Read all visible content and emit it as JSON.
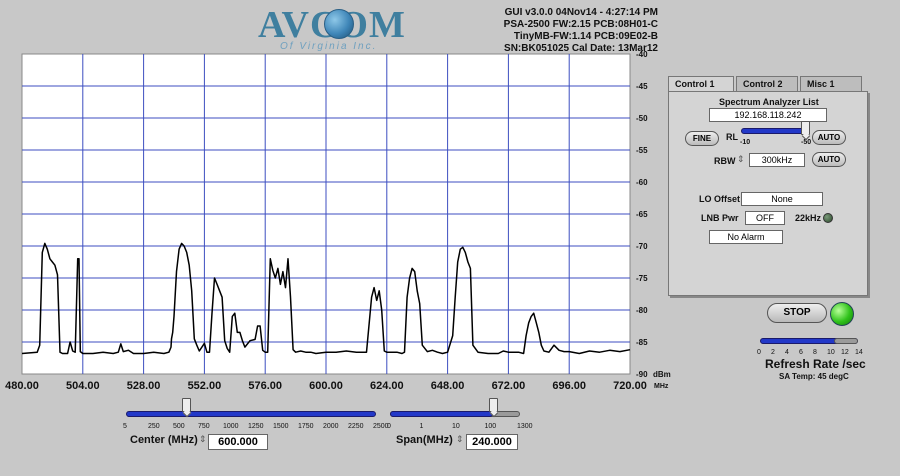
{
  "logo": {
    "name": "AVCOM",
    "sub": "Of Virginia Inc."
  },
  "info_lines": [
    "GUI v3.0.0   04Nov14 - 4:27:14 PM",
    "PSA-2500 FW:2.15 PCB:08H01-C",
    "TinyMB-FW:1.14  PCB:09E02-B",
    "SN:BK051025  Cal Date: 13Mar12"
  ],
  "chart_data": {
    "type": "line",
    "x_ticks": [
      "480.00",
      "504.00",
      "528.00",
      "552.00",
      "576.00",
      "600.00",
      "624.00",
      "648.00",
      "672.00",
      "696.00",
      "720.00"
    ],
    "x_unit": "MHz",
    "y_ticks": [
      "-40",
      "-45",
      "-50",
      "-55",
      "-60",
      "-65",
      "-70",
      "-75",
      "-80",
      "-85",
      "-90"
    ],
    "y_unit": "dBm",
    "xlim": [
      480,
      720
    ],
    "ylim": [
      -90,
      -40
    ],
    "grid": true,
    "series": [
      {
        "color": "#000000",
        "points": [
          [
            480,
            -86.8
          ],
          [
            486,
            -86.6
          ],
          [
            487,
            -85.5
          ],
          [
            488,
            -71
          ],
          [
            489,
            -69.6
          ],
          [
            490,
            -70.5
          ],
          [
            491,
            -72
          ],
          [
            492,
            -72.5
          ],
          [
            493,
            -73
          ],
          [
            494,
            -74.5
          ],
          [
            495,
            -86.6
          ],
          [
            496,
            -86.8
          ],
          [
            498,
            -86.8
          ],
          [
            499,
            -85
          ],
          [
            500,
            -86.4
          ],
          [
            501,
            -86.6
          ],
          [
            502,
            -72
          ],
          [
            502.5,
            -72
          ],
          [
            503,
            -86.5
          ],
          [
            504,
            -86.8
          ],
          [
            508,
            -86.8
          ],
          [
            512,
            -86.6
          ],
          [
            516,
            -86.8
          ],
          [
            518,
            -86.6
          ],
          [
            519,
            -85.3
          ],
          [
            520,
            -86.5
          ],
          [
            522,
            -86.3
          ],
          [
            524,
            -86.8
          ],
          [
            528,
            -86.8
          ],
          [
            532,
            -86.6
          ],
          [
            536,
            -86.8
          ],
          [
            538,
            -86.6
          ],
          [
            538.8,
            -85.8
          ],
          [
            539,
            -84.5
          ],
          [
            539.5,
            -83.5
          ],
          [
            540,
            -81
          ],
          [
            541,
            -74
          ],
          [
            542,
            -70.5
          ],
          [
            543,
            -69.6
          ],
          [
            544,
            -70
          ],
          [
            545,
            -71
          ],
          [
            546,
            -73
          ],
          [
            547,
            -77
          ],
          [
            548,
            -84.5
          ],
          [
            549,
            -85.5
          ],
          [
            550,
            -86.4
          ],
          [
            552,
            -85.2
          ],
          [
            553,
            -86.6
          ],
          [
            554,
            -86.6
          ],
          [
            555,
            -80.5
          ],
          [
            556,
            -75
          ],
          [
            557,
            -76
          ],
          [
            558,
            -77
          ],
          [
            559,
            -78
          ],
          [
            560,
            -84.8
          ],
          [
            561,
            -86
          ],
          [
            562,
            -86.6
          ],
          [
            563,
            -81
          ],
          [
            564,
            -80.5
          ],
          [
            565,
            -83.5
          ],
          [
            566,
            -83.5
          ],
          [
            567,
            -84.8
          ],
          [
            568,
            -85.8
          ],
          [
            570,
            -84.8
          ],
          [
            572,
            -84.6
          ],
          [
            573,
            -82.5
          ],
          [
            574,
            -82.5
          ],
          [
            575,
            -86.3
          ],
          [
            576,
            -86.6
          ],
          [
            577,
            -86.6
          ],
          [
            578,
            -72
          ],
          [
            579,
            -73.8
          ],
          [
            580,
            -75
          ],
          [
            581,
            -73.5
          ],
          [
            582,
            -76
          ],
          [
            583,
            -74
          ],
          [
            584,
            -76.5
          ],
          [
            585,
            -72
          ],
          [
            586,
            -78
          ],
          [
            587,
            -86.2
          ],
          [
            588,
            -86.6
          ],
          [
            590,
            -86.4
          ],
          [
            592,
            -86.6
          ],
          [
            594,
            -86.6
          ],
          [
            596,
            -86.8
          ],
          [
            600,
            -86.6
          ],
          [
            604,
            -86.6
          ],
          [
            608,
            -86.4
          ],
          [
            612,
            -86.6
          ],
          [
            616,
            -86.6
          ],
          [
            618,
            -78
          ],
          [
            619,
            -76.5
          ],
          [
            620,
            -78.5
          ],
          [
            621,
            -77
          ],
          [
            622,
            -80
          ],
          [
            623,
            -86.4
          ],
          [
            624,
            -86.6
          ],
          [
            628,
            -86.6
          ],
          [
            630,
            -86.8
          ],
          [
            631,
            -86.6
          ],
          [
            632,
            -78
          ],
          [
            633,
            -75
          ],
          [
            634,
            -73.5
          ],
          [
            635,
            -74
          ],
          [
            636,
            -77
          ],
          [
            637,
            -79
          ],
          [
            638,
            -85.5
          ],
          [
            640,
            -86.5
          ],
          [
            642,
            -86.3
          ],
          [
            644,
            -86.6
          ],
          [
            646,
            -86.8
          ],
          [
            648,
            -86.6
          ],
          [
            650,
            -84
          ],
          [
            651,
            -78
          ],
          [
            652,
            -72.5
          ],
          [
            653,
            -70.5
          ],
          [
            654,
            -70.2
          ],
          [
            655,
            -71
          ],
          [
            656,
            -72.5
          ],
          [
            657,
            -73.5
          ],
          [
            658,
            -85.5
          ],
          [
            660,
            -86.6
          ],
          [
            664,
            -86.8
          ],
          [
            668,
            -86.8
          ],
          [
            670,
            -86.4
          ],
          [
            672,
            -86.6
          ],
          [
            676,
            -86.6
          ],
          [
            678,
            -86.8
          ],
          [
            679,
            -84
          ],
          [
            680,
            -82
          ],
          [
            681,
            -81
          ],
          [
            682,
            -80.5
          ],
          [
            683,
            -82
          ],
          [
            684,
            -83.5
          ],
          [
            685,
            -85.5
          ],
          [
            686,
            -86.4
          ],
          [
            688,
            -86.6
          ],
          [
            690,
            -85.5
          ],
          [
            692,
            -86.3
          ],
          [
            694,
            -86.5
          ],
          [
            696,
            -86.5
          ],
          [
            700,
            -86.8
          ],
          [
            704,
            -86.4
          ],
          [
            708,
            -86.6
          ],
          [
            712,
            -86.3
          ],
          [
            716,
            -86.5
          ],
          [
            720,
            -86.2
          ]
        ]
      }
    ]
  },
  "tabs": [
    {
      "label": "Control 1",
      "active": true
    },
    {
      "label": "Control 2",
      "active": false
    },
    {
      "label": "Misc 1",
      "active": false
    }
  ],
  "control1": {
    "list_title": "Spectrum Analyzer List",
    "ip": "192.168.118.242",
    "fine_label": "FINE",
    "rl_label": "RL",
    "rl_min": "-10",
    "rl_max": "-50",
    "rl_level": 0.95,
    "auto_label": "AUTO",
    "rbw_label": "RBW",
    "rbw_value": "300kHz",
    "lo_offset_label": "LO Offset",
    "lo_offset_value": "None",
    "lnb_pwr_label": "LNB Pwr",
    "lnb_pwr_value": "OFF",
    "khz22_label": "22kHz",
    "alarm_value": "No Alarm"
  },
  "stop_label": "STOP",
  "refresh": {
    "ticks": [
      "0",
      "2",
      "4",
      "6",
      "8",
      "10",
      "12",
      "14"
    ],
    "label": "Refresh Rate /sec",
    "level": 0.75
  },
  "temp": "SA Temp: 45 degC",
  "center": {
    "label": "Center (MHz)",
    "value": "600.000",
    "ticks": [
      "5",
      "250",
      "500",
      "750",
      "1000",
      "1250",
      "1500",
      "1750",
      "2000",
      "2250",
      "2500"
    ],
    "level": 0.24
  },
  "span": {
    "label": "Span(MHz)",
    "value": "240.000",
    "ticks": [
      "0",
      "1",
      "10",
      "100",
      "1300"
    ],
    "level": 0.79
  },
  "colors": {
    "trace": "#000000",
    "grid": "#3c4ec0",
    "slider": "#2238c8",
    "led_on": "#2fc21a"
  }
}
